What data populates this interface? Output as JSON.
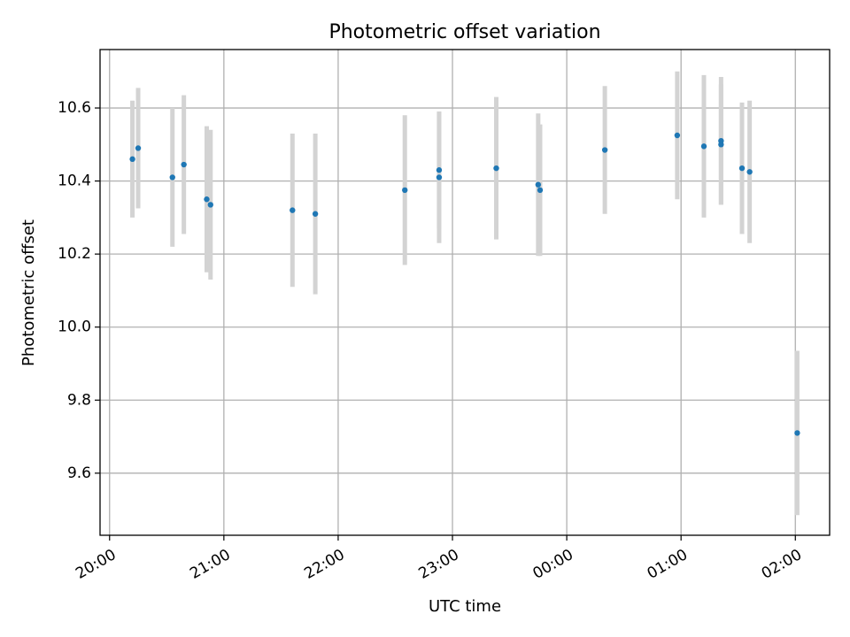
{
  "chart_data": {
    "type": "scatter",
    "title": "Photometric offset variation",
    "xlabel": "UTC time",
    "ylabel": "Photometric offset",
    "x_unit": "time (HH:MM, UTC)",
    "xlim": [
      "19:55",
      "02:18"
    ],
    "ylim": [
      9.43,
      10.76
    ],
    "x_ticks": [
      "20:00",
      "21:00",
      "22:00",
      "23:00",
      "00:00",
      "01:00",
      "02:00"
    ],
    "y_ticks": [
      9.6,
      9.8,
      10.0,
      10.2,
      10.4,
      10.6
    ],
    "y_tick_labels": [
      "9.6",
      "9.8",
      "10.0",
      "10.2",
      "10.4",
      "10.6"
    ],
    "grid": true,
    "marker_color": "#1f77b4",
    "errorbar_color": "#d3d3d3",
    "series": [
      {
        "points": [
          {
            "x": "20:12",
            "y": 10.46,
            "yerr": 0.16
          },
          {
            "x": "20:15",
            "y": 10.49,
            "yerr": 0.165
          },
          {
            "x": "20:33",
            "y": 10.41,
            "yerr": 0.19
          },
          {
            "x": "20:39",
            "y": 10.445,
            "yerr": 0.19
          },
          {
            "x": "20:51",
            "y": 10.35,
            "yerr": 0.2
          },
          {
            "x": "20:53",
            "y": 10.335,
            "yerr": 0.205
          },
          {
            "x": "21:36",
            "y": 10.32,
            "yerr": 0.21
          },
          {
            "x": "21:48",
            "y": 10.31,
            "yerr": 0.22
          },
          {
            "x": "22:35",
            "y": 10.375,
            "yerr": 0.205
          },
          {
            "x": "22:53",
            "y": 10.41,
            "yerr": 0.18
          },
          {
            "x": "22:53",
            "y": 10.43,
            "yerr": 0.16
          },
          {
            "x": "23:23",
            "y": 10.435,
            "yerr": 0.195
          },
          {
            "x": "23:45",
            "y": 10.39,
            "yerr": 0.195
          },
          {
            "x": "23:46",
            "y": 10.375,
            "yerr": 0.18
          },
          {
            "x": "00:20",
            "y": 10.485,
            "yerr": 0.175
          },
          {
            "x": "00:58",
            "y": 10.525,
            "yerr": 0.175
          },
          {
            "x": "01:12",
            "y": 10.495,
            "yerr": 0.195
          },
          {
            "x": "01:21",
            "y": 10.51,
            "yerr": 0.175
          },
          {
            "x": "01:21",
            "y": 10.5,
            "yerr": 0.165
          },
          {
            "x": "01:32",
            "y": 10.435,
            "yerr": 0.18
          },
          {
            "x": "01:36",
            "y": 10.425,
            "yerr": 0.195
          },
          {
            "x": "02:01",
            "y": 9.71,
            "yerr": 0.225
          }
        ]
      }
    ]
  }
}
